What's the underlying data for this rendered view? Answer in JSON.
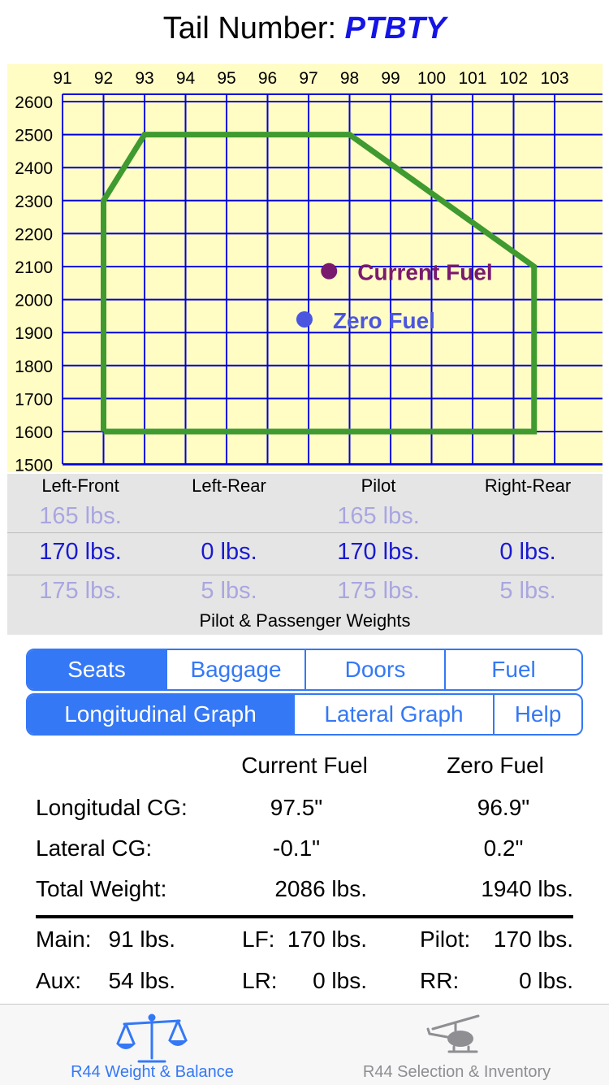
{
  "header": {
    "label": "Tail Number:",
    "tail": "PTBTY"
  },
  "chart_data": {
    "type": "scatter",
    "x_ticks": [
      "91",
      "92",
      "93",
      "94",
      "95",
      "96",
      "97",
      "98",
      "99",
      "100",
      "101",
      "102",
      "103"
    ],
    "y_ticks": [
      "2600",
      "2500",
      "2400",
      "2300",
      "2200",
      "2100",
      "2000",
      "1900",
      "1800",
      "1700",
      "1600",
      "1500"
    ],
    "xlim": [
      91,
      103
    ],
    "ylim": [
      1500,
      2600
    ],
    "grid": true,
    "envelope": [
      [
        92,
        1600
      ],
      [
        92,
        2300
      ],
      [
        93,
        2500
      ],
      [
        98,
        2500
      ],
      [
        102.5,
        2100
      ],
      [
        102.5,
        1600
      ],
      [
        92,
        1600
      ]
    ],
    "points": [
      {
        "name": "Current Fuel",
        "x": 97.5,
        "y": 2086,
        "color": "#7a1a6e"
      },
      {
        "name": "Zero Fuel",
        "x": 96.9,
        "y": 1940,
        "color": "#4a55e0"
      }
    ],
    "colors": {
      "background": "#fffcc4",
      "grid": "#0000dd",
      "envelope": "#3f9a2f"
    }
  },
  "picker": {
    "columns": [
      "Left-Front",
      "Left-Rear",
      "Pilot",
      "Right-Rear"
    ],
    "above": [
      "165 lbs.",
      "",
      "165 lbs.",
      ""
    ],
    "selected": [
      "170 lbs.",
      "0 lbs.",
      "170 lbs.",
      "0 lbs."
    ],
    "below": [
      "175 lbs.",
      "5 lbs.",
      "175 lbs.",
      "5 lbs."
    ],
    "footer": "Pilot & Passenger Weights"
  },
  "segments_top": {
    "items": [
      "Seats",
      "Baggage",
      "Doors",
      "Fuel"
    ],
    "active": 0
  },
  "segments_bottom": {
    "items": [
      "Longitudinal Graph",
      "Lateral Graph",
      "Help"
    ],
    "active": 0
  },
  "stats": {
    "col_current": "Current Fuel",
    "col_zero": "Zero Fuel",
    "rows": [
      {
        "label": "Longitudal CG:",
        "current": "97.5\"",
        "zero": "96.9\""
      },
      {
        "label": "Lateral CG:",
        "current": "-0.1\"",
        "zero": "0.2\""
      },
      {
        "label": "Total Weight:",
        "current": "2086 lbs.",
        "zero": "1940 lbs."
      }
    ]
  },
  "summary": {
    "main_label": "Main:",
    "main_value": "91 lbs.",
    "aux_label": "Aux:",
    "aux_value": "54 lbs.",
    "lf_label": "LF:",
    "lf_value": "170 lbs.",
    "lr_label": "LR:",
    "lr_value": "0 lbs.",
    "pilot_label": "Pilot:",
    "pilot_value": "170 lbs.",
    "rr_label": "RR:",
    "rr_value": "0 lbs."
  },
  "tabbar": {
    "tabs": [
      {
        "label": "R44 Weight & Balance",
        "icon": "scale-icon",
        "active": true,
        "color": "#3478f6"
      },
      {
        "label": "R44 Selection & Inventory",
        "icon": "helicopter-icon",
        "active": false,
        "color": "#8e8e93"
      }
    ]
  }
}
